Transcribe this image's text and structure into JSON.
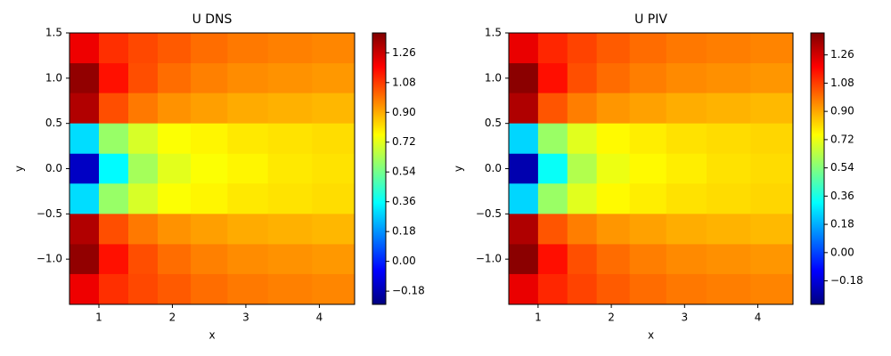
{
  "chart_data": [
    {
      "type": "contour",
      "title": "U DNS",
      "x_label": "x",
      "y_label": "y",
      "colormap": "jet",
      "xlim": [
        0.6,
        4.48
      ],
      "ylim": [
        -1.5,
        1.5
      ],
      "xticks": [
        1,
        2,
        3,
        4
      ],
      "yticks": [
        1.5,
        {
          "value": 1.0,
          "label": "1.0"
        },
        0.5,
        {
          "value": 0.0,
          "label": "0.0"
        },
        {
          "value": -0.5,
          "label": "−0.5"
        },
        {
          "value": -1.0,
          "label": "−1.0"
        }
      ],
      "clim": [
        -0.26,
        1.38
      ],
      "cticks": [
        {
          "value": -0.18,
          "label": "−0.18"
        },
        {
          "value": 0.0,
          "label": "0.00"
        },
        {
          "value": 0.18,
          "label": "0.18"
        },
        {
          "value": 0.36,
          "label": "0.36"
        },
        {
          "value": 0.54,
          "label": "0.54"
        },
        {
          "value": 0.72,
          "label": "0.72"
        },
        {
          "value": 0.9,
          "label": "0.90"
        },
        {
          "value": 1.08,
          "label": "1.08"
        },
        {
          "value": 1.26,
          "label": "1.26"
        }
      ],
      "x": [
        0.8,
        1.2,
        1.6,
        2.0,
        2.5,
        3.0,
        3.6,
        4.2
      ],
      "y": [
        1.33,
        1.0,
        0.67,
        0.33,
        0.0,
        -0.33,
        -0.67,
        -1.0,
        -1.33
      ],
      "z": [
        [
          1.2,
          1.1,
          1.06,
          1.03,
          1.0,
          0.98,
          0.97,
          0.96
        ],
        [
          1.35,
          1.15,
          1.05,
          1.0,
          0.97,
          0.95,
          0.94,
          0.93
        ],
        [
          1.3,
          1.05,
          0.98,
          0.94,
          0.92,
          0.9,
          0.89,
          0.88
        ],
        [
          0.3,
          0.6,
          0.7,
          0.76,
          0.78,
          0.8,
          0.81,
          0.82
        ],
        [
          -0.15,
          0.35,
          0.62,
          0.72,
          0.76,
          0.78,
          0.8,
          0.81
        ],
        [
          0.3,
          0.6,
          0.7,
          0.76,
          0.78,
          0.8,
          0.81,
          0.82
        ],
        [
          1.3,
          1.05,
          0.98,
          0.94,
          0.92,
          0.9,
          0.89,
          0.88
        ],
        [
          1.35,
          1.15,
          1.05,
          1.0,
          0.97,
          0.95,
          0.94,
          0.93
        ],
        [
          1.2,
          1.1,
          1.06,
          1.03,
          1.0,
          0.98,
          0.97,
          0.96
        ]
      ]
    },
    {
      "type": "contour",
      "title": "U PIV",
      "x_label": "x",
      "y_label": "y",
      "colormap": "jet",
      "xlim": [
        0.6,
        4.48
      ],
      "ylim": [
        -1.5,
        1.5
      ],
      "xticks": [
        1,
        2,
        3,
        4
      ],
      "yticks": [
        1.5,
        {
          "value": 1.0,
          "label": "1.0"
        },
        0.5,
        {
          "value": 0.0,
          "label": "0.0"
        },
        {
          "value": -0.5,
          "label": "−0.5"
        },
        {
          "value": -1.0,
          "label": "−1.0"
        }
      ],
      "clim": [
        -0.33,
        1.4
      ],
      "cticks": [
        {
          "value": -0.18,
          "label": "−0.18"
        },
        {
          "value": 0.0,
          "label": "0.00"
        },
        {
          "value": 0.18,
          "label": "0.18"
        },
        {
          "value": 0.36,
          "label": "0.36"
        },
        {
          "value": 0.54,
          "label": "0.54"
        },
        {
          "value": 0.72,
          "label": "0.72"
        },
        {
          "value": 0.9,
          "label": "0.90"
        },
        {
          "value": 1.08,
          "label": "1.08"
        },
        {
          "value": 1.26,
          "label": "1.26"
        }
      ],
      "x": [
        0.8,
        1.2,
        1.6,
        2.0,
        2.5,
        3.0,
        3.6,
        4.2
      ],
      "y": [
        1.33,
        1.0,
        0.67,
        0.33,
        0.0,
        -0.33,
        -0.67,
        -1.0,
        -1.33
      ],
      "z": [
        [
          1.22,
          1.12,
          1.07,
          1.03,
          1.0,
          0.98,
          0.97,
          0.96
        ],
        [
          1.38,
          1.16,
          1.05,
          1.0,
          0.97,
          0.95,
          0.94,
          0.93
        ],
        [
          1.32,
          1.04,
          0.97,
          0.93,
          0.91,
          0.89,
          0.88,
          0.87
        ],
        [
          0.25,
          0.58,
          0.7,
          0.76,
          0.78,
          0.8,
          0.81,
          0.82
        ],
        [
          -0.25,
          0.33,
          0.62,
          0.72,
          0.76,
          0.78,
          0.8,
          0.81
        ],
        [
          0.25,
          0.58,
          0.7,
          0.76,
          0.78,
          0.8,
          0.81,
          0.82
        ],
        [
          1.32,
          1.04,
          0.97,
          0.93,
          0.91,
          0.89,
          0.88,
          0.87
        ],
        [
          1.38,
          1.16,
          1.05,
          1.0,
          0.97,
          0.95,
          0.94,
          0.93
        ],
        [
          1.22,
          1.12,
          1.07,
          1.03,
          1.0,
          0.98,
          0.97,
          0.96
        ]
      ]
    }
  ]
}
